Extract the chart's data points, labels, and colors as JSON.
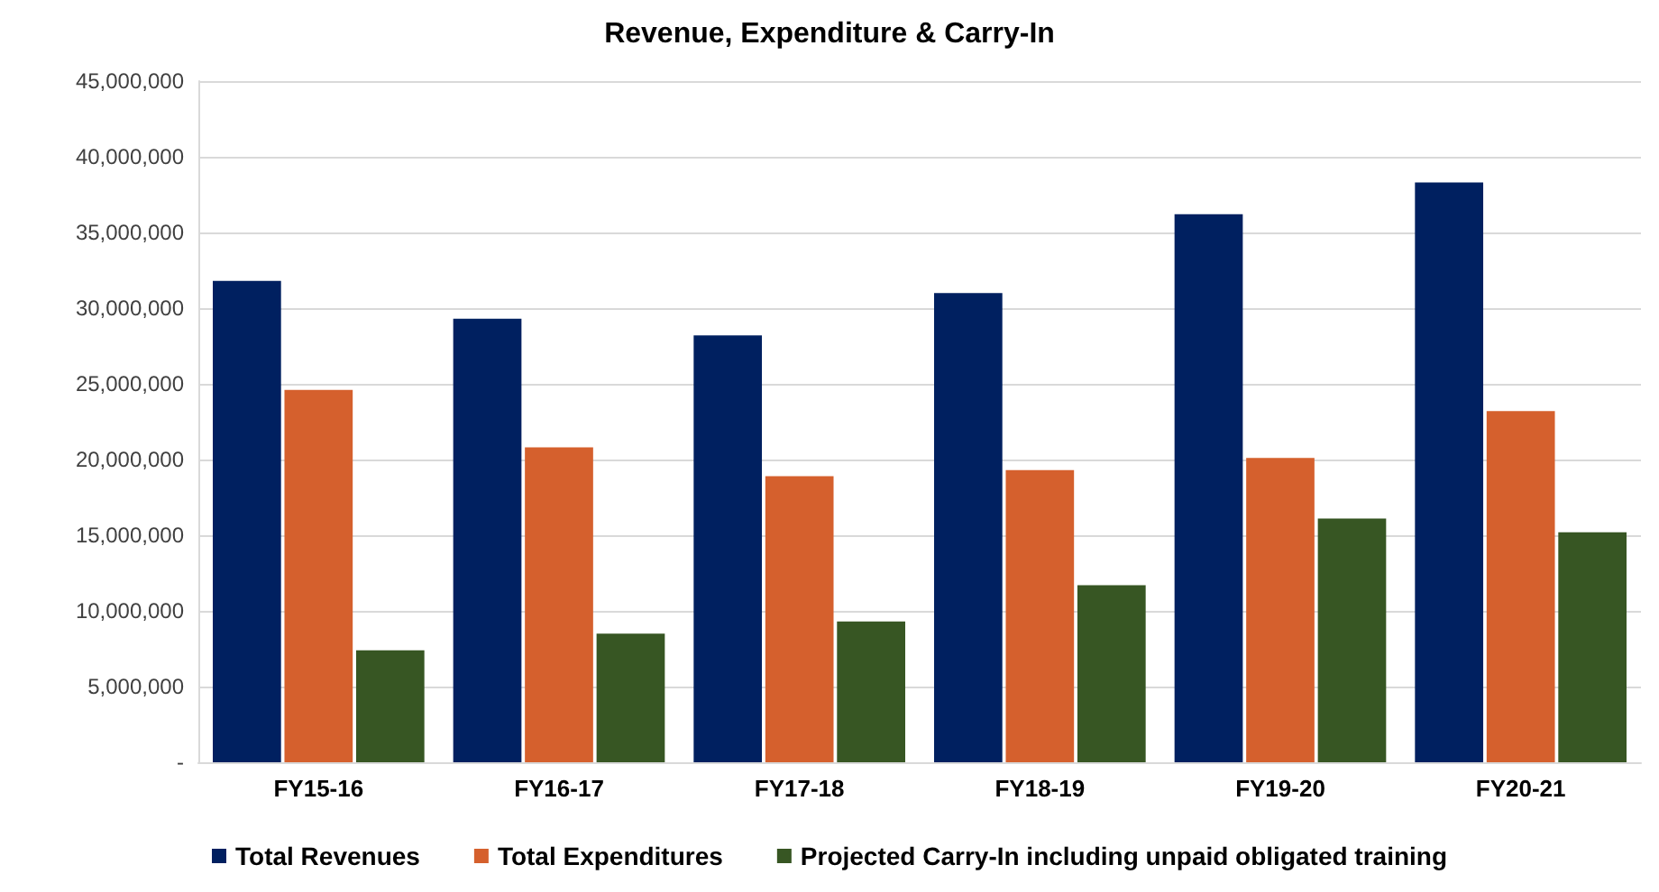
{
  "chart_data": {
    "type": "bar",
    "title": "Revenue, Expenditure & Carry-In",
    "categories": [
      "FY15-16",
      "FY16-17",
      "FY17-18",
      "FY18-19",
      "FY19-20",
      "FY20-21"
    ],
    "series": [
      {
        "name": "Total Revenues",
        "color": "#002060",
        "values": [
          31800000,
          29300000,
          28200000,
          31000000,
          36200000,
          38300000
        ]
      },
      {
        "name": "Total Expenditures",
        "color": "#d5602d",
        "values": [
          24600000,
          20800000,
          18900000,
          19300000,
          20100000,
          23200000
        ]
      },
      {
        "name": "Projected Carry-In including unpaid obligated training",
        "color": "#375623",
        "values": [
          7400000,
          8500000,
          9300000,
          11700000,
          16100000,
          15200000
        ]
      }
    ],
    "ylim": [
      0,
      45000000
    ],
    "yticks": [
      {
        "value": 0,
        "label": "-"
      },
      {
        "value": 5000000,
        "label": "5,000,000"
      },
      {
        "value": 10000000,
        "label": "10,000,000"
      },
      {
        "value": 15000000,
        "label": "15,000,000"
      },
      {
        "value": 20000000,
        "label": "20,000,000"
      },
      {
        "value": 25000000,
        "label": "25,000,000"
      },
      {
        "value": 30000000,
        "label": "30,000,000"
      },
      {
        "value": 35000000,
        "label": "35,000,000"
      },
      {
        "value": 40000000,
        "label": "40,000,000"
      },
      {
        "value": 45000000,
        "label": "45,000,000"
      }
    ],
    "grid": "y",
    "legend": "bottom"
  }
}
